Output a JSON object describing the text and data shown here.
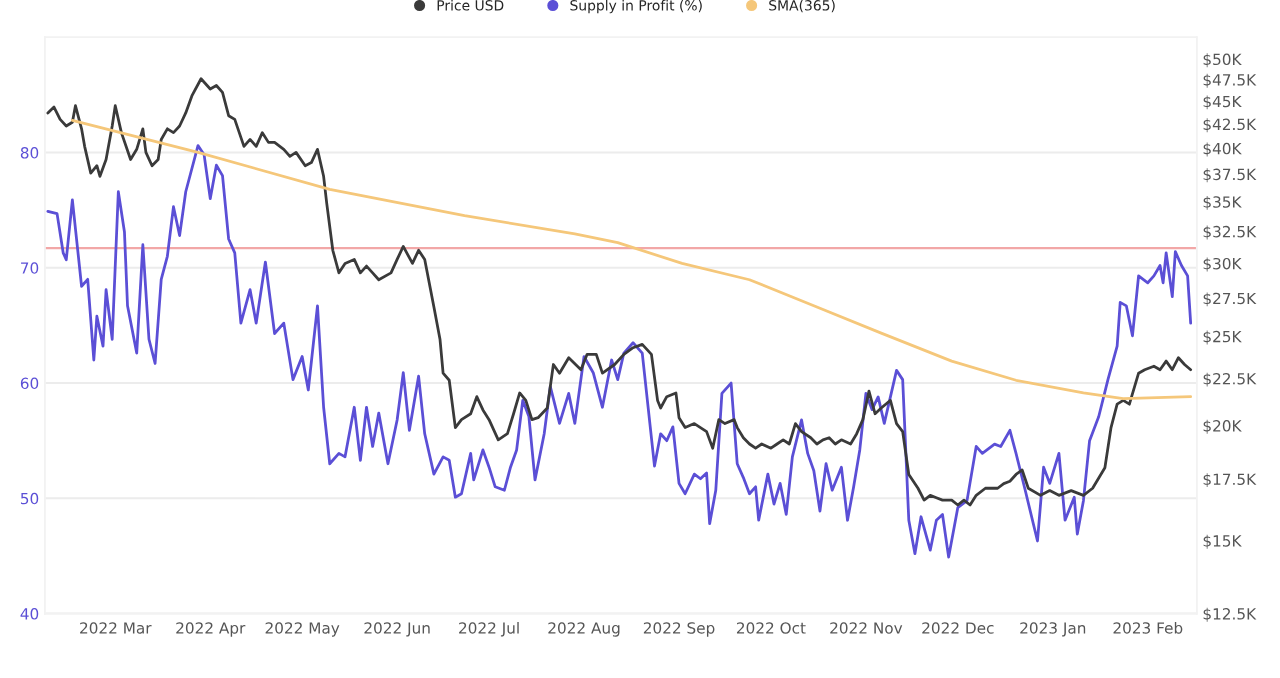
{
  "chart_data": {
    "type": "line",
    "legend": "top",
    "grid": "y",
    "log": "y2",
    "xlim": [
      "2022-02-06",
      "2023-02-17"
    ],
    "xticks": [
      {
        "value": "2022-03-01",
        "label": "2022 Mar"
      },
      {
        "value": "2022-04-01",
        "label": "2022 Apr"
      },
      {
        "value": "2022-05-01",
        "label": "2022 May"
      },
      {
        "value": "2022-06-01",
        "label": "2022 Jun"
      },
      {
        "value": "2022-07-01",
        "label": "2022 Jul"
      },
      {
        "value": "2022-08-01",
        "label": "2022 Aug"
      },
      {
        "value": "2022-09-01",
        "label": "2022 Sep"
      },
      {
        "value": "2022-10-01",
        "label": "2022 Oct"
      },
      {
        "value": "2022-11-01",
        "label": "2022 Nov"
      },
      {
        "value": "2022-12-01",
        "label": "2022 Dec"
      },
      {
        "value": "2023-01-01",
        "label": "2023 Jan"
      },
      {
        "value": "2023-02-01",
        "label": "2023 Feb"
      }
    ],
    "ylim": [
      40,
      90
    ],
    "yticks": [
      40,
      50,
      60,
      70,
      80
    ],
    "y2lim": [
      12500,
      52800
    ],
    "y2ticks": [
      {
        "value": 12500,
        "label": "$12.5K"
      },
      {
        "value": 15000,
        "label": "$15K"
      },
      {
        "value": 17500,
        "label": "$17.5K"
      },
      {
        "value": 20000,
        "label": "$20K"
      },
      {
        "value": 22500,
        "label": "$22.5K"
      },
      {
        "value": 25000,
        "label": "$25K"
      },
      {
        "value": 27500,
        "label": "$27.5K"
      },
      {
        "value": 30000,
        "label": "$30K"
      },
      {
        "value": 32500,
        "label": "$32.5K"
      },
      {
        "value": 35000,
        "label": "$35K"
      },
      {
        "value": 37500,
        "label": "$37.5K"
      },
      {
        "value": 40000,
        "label": "$40K"
      },
      {
        "value": 42500,
        "label": "$42.5K"
      },
      {
        "value": 45000,
        "label": "$45K"
      },
      {
        "value": 47500,
        "label": "$47.5K"
      },
      {
        "value": 50000,
        "label": "$50K"
      }
    ],
    "ref_lines": [
      {
        "axis": "y",
        "value": 71.7,
        "color": "#f2a7a7"
      }
    ],
    "series": [
      {
        "name": "Price USD",
        "axis": "y2",
        "color": "#3a3a3a",
        "x": [
          "2022-02-07",
          "2022-02-09",
          "2022-02-11",
          "2022-02-13",
          "2022-02-15",
          "2022-02-16",
          "2022-02-18",
          "2022-02-19",
          "2022-02-21",
          "2022-02-23",
          "2022-02-24",
          "2022-02-26",
          "2022-02-28",
          "2022-03-01",
          "2022-03-03",
          "2022-03-06",
          "2022-03-08",
          "2022-03-10",
          "2022-03-11",
          "2022-03-13",
          "2022-03-15",
          "2022-03-16",
          "2022-03-18",
          "2022-03-20",
          "2022-03-22",
          "2022-03-24",
          "2022-03-26",
          "2022-03-29",
          "2022-04-01",
          "2022-04-03",
          "2022-04-05",
          "2022-04-07",
          "2022-04-09",
          "2022-04-12",
          "2022-04-14",
          "2022-04-16",
          "2022-04-18",
          "2022-04-20",
          "2022-04-22",
          "2022-04-25",
          "2022-04-27",
          "2022-04-29",
          "2022-05-02",
          "2022-05-04",
          "2022-05-06",
          "2022-05-08",
          "2022-05-09",
          "2022-05-11",
          "2022-05-13",
          "2022-05-15",
          "2022-05-18",
          "2022-05-20",
          "2022-05-22",
          "2022-05-24",
          "2022-05-26",
          "2022-05-30",
          "2022-06-01",
          "2022-06-03",
          "2022-06-06",
          "2022-06-08",
          "2022-06-10",
          "2022-06-13",
          "2022-06-15",
          "2022-06-16",
          "2022-06-18",
          "2022-06-20",
          "2022-06-22",
          "2022-06-25",
          "2022-06-27",
          "2022-06-29",
          "2022-07-01",
          "2022-07-04",
          "2022-07-07",
          "2022-07-09",
          "2022-07-11",
          "2022-07-13",
          "2022-07-15",
          "2022-07-17",
          "2022-07-20",
          "2022-07-22",
          "2022-07-24",
          "2022-07-27",
          "2022-07-31",
          "2022-08-02",
          "2022-08-05",
          "2022-08-07",
          "2022-08-11",
          "2022-08-14",
          "2022-08-17",
          "2022-08-20",
          "2022-08-23",
          "2022-08-25",
          "2022-08-26",
          "2022-08-28",
          "2022-08-31",
          "2022-09-01",
          "2022-09-03",
          "2022-09-06",
          "2022-09-08",
          "2022-09-10",
          "2022-09-12",
          "2022-09-14",
          "2022-09-16",
          "2022-09-19",
          "2022-09-20",
          "2022-09-22",
          "2022-09-24",
          "2022-09-26",
          "2022-09-28",
          "2022-10-01",
          "2022-10-03",
          "2022-10-05",
          "2022-10-07",
          "2022-10-09",
          "2022-10-11",
          "2022-10-14",
          "2022-10-16",
          "2022-10-18",
          "2022-10-20",
          "2022-10-22",
          "2022-10-24",
          "2022-10-27",
          "2022-10-29",
          "2022-10-31",
          "2022-11-02",
          "2022-11-04",
          "2022-11-06",
          "2022-11-09",
          "2022-11-11",
          "2022-11-13",
          "2022-11-15",
          "2022-11-18",
          "2022-11-20",
          "2022-11-22",
          "2022-11-24",
          "2022-11-26",
          "2022-11-29",
          "2022-12-01",
          "2022-12-03",
          "2022-12-05",
          "2022-12-07",
          "2022-12-10",
          "2022-12-14",
          "2022-12-16",
          "2022-12-18",
          "2022-12-20",
          "2022-12-22",
          "2022-12-24",
          "2022-12-28",
          "2022-12-31",
          "2023-01-03",
          "2023-01-07",
          "2023-01-11",
          "2023-01-14",
          "2023-01-18",
          "2023-01-20",
          "2023-01-22",
          "2023-01-24",
          "2023-01-26",
          "2023-01-29",
          "2023-01-31",
          "2023-02-03",
          "2023-02-05",
          "2023-02-07",
          "2023-02-09",
          "2023-02-11",
          "2023-02-13",
          "2023-02-15"
        ],
        "values": [
          43700,
          44350,
          43000,
          42300,
          42700,
          44500,
          42000,
          40200,
          37600,
          38300,
          37300,
          38900,
          42300,
          44500,
          41600,
          38900,
          39900,
          42000,
          39600,
          38300,
          38900,
          40900,
          42000,
          41600,
          42300,
          43700,
          45600,
          47600,
          46400,
          46800,
          46000,
          43400,
          43000,
          40200,
          40900,
          40200,
          41600,
          40600,
          40600,
          39900,
          39200,
          39600,
          38300,
          38600,
          39900,
          37300,
          34900,
          31000,
          29300,
          30000,
          30300,
          29300,
          29800,
          29300,
          28800,
          29300,
          30300,
          31300,
          30000,
          31000,
          30300,
          26900,
          24800,
          22800,
          22400,
          19900,
          20300,
          20600,
          21500,
          20800,
          20300,
          19300,
          19600,
          20600,
          21700,
          21300,
          20300,
          20400,
          20900,
          23300,
          22800,
          23700,
          23000,
          23900,
          23900,
          22800,
          23300,
          23900,
          24300,
          24500,
          23900,
          21300,
          20900,
          21500,
          21700,
          20400,
          19900,
          20100,
          19900,
          19700,
          18900,
          20300,
          20100,
          20300,
          19900,
          19400,
          19100,
          18900,
          19100,
          18900,
          19100,
          19300,
          19100,
          20100,
          19700,
          19400,
          19100,
          19300,
          19400,
          19100,
          19300,
          19100,
          19600,
          20300,
          21800,
          20600,
          20900,
          21300,
          20100,
          19700,
          17700,
          17100,
          16600,
          16800,
          16700,
          16600,
          16600,
          16400,
          16600,
          16400,
          16800,
          17100,
          17100,
          17300,
          17400,
          17700,
          17900,
          17100,
          16800,
          17000,
          16800,
          17000,
          16800,
          17100,
          18000,
          19900,
          21100,
          21300,
          21100,
          22800,
          23000,
          23200,
          23000,
          23500,
          23000,
          23700,
          23300,
          23000
        ]
      },
      {
        "name": "Supply in Profit (%)",
        "axis": "y",
        "color": "#5b4fd6",
        "x": [
          "2022-02-07",
          "2022-02-10",
          "2022-02-12",
          "2022-02-13",
          "2022-02-15",
          "2022-02-18",
          "2022-02-20",
          "2022-02-22",
          "2022-02-23",
          "2022-02-25",
          "2022-02-26",
          "2022-02-28",
          "2022-03-02",
          "2022-03-04",
          "2022-03-05",
          "2022-03-08",
          "2022-03-10",
          "2022-03-12",
          "2022-03-14",
          "2022-03-16",
          "2022-03-18",
          "2022-03-20",
          "2022-03-22",
          "2022-03-24",
          "2022-03-28",
          "2022-03-30",
          "2022-04-01",
          "2022-04-03",
          "2022-04-05",
          "2022-04-07",
          "2022-04-09",
          "2022-04-11",
          "2022-04-14",
          "2022-04-16",
          "2022-04-19",
          "2022-04-22",
          "2022-04-25",
          "2022-04-28",
          "2022-05-01",
          "2022-05-03",
          "2022-05-06",
          "2022-05-08",
          "2022-05-10",
          "2022-05-13",
          "2022-05-15",
          "2022-05-18",
          "2022-05-20",
          "2022-05-22",
          "2022-05-24",
          "2022-05-26",
          "2022-05-29",
          "2022-06-01",
          "2022-06-03",
          "2022-06-05",
          "2022-06-08",
          "2022-06-10",
          "2022-06-13",
          "2022-06-16",
          "2022-06-18",
          "2022-06-20",
          "2022-06-22",
          "2022-06-25",
          "2022-06-26",
          "2022-06-29",
          "2022-07-01",
          "2022-07-03",
          "2022-07-06",
          "2022-07-08",
          "2022-07-10",
          "2022-07-12",
          "2022-07-14",
          "2022-07-16",
          "2022-07-19",
          "2022-07-21",
          "2022-07-24",
          "2022-07-27",
          "2022-07-29",
          "2022-08-01",
          "2022-08-04",
          "2022-08-07",
          "2022-08-10",
          "2022-08-12",
          "2022-08-14",
          "2022-08-17",
          "2022-08-20",
          "2022-08-24",
          "2022-08-26",
          "2022-08-28",
          "2022-08-30",
          "2022-09-01",
          "2022-09-03",
          "2022-09-06",
          "2022-09-08",
          "2022-09-10",
          "2022-09-11",
          "2022-09-13",
          "2022-09-15",
          "2022-09-18",
          "2022-09-20",
          "2022-09-22",
          "2022-09-24",
          "2022-09-26",
          "2022-09-27",
          "2022-09-30",
          "2022-10-02",
          "2022-10-04",
          "2022-10-06",
          "2022-10-08",
          "2022-10-11",
          "2022-10-13",
          "2022-10-15",
          "2022-10-17",
          "2022-10-19",
          "2022-10-21",
          "2022-10-24",
          "2022-10-26",
          "2022-10-28",
          "2022-10-30",
          "2022-11-01",
          "2022-11-03",
          "2022-11-05",
          "2022-11-07",
          "2022-11-11",
          "2022-11-13",
          "2022-11-15",
          "2022-11-17",
          "2022-11-19",
          "2022-11-22",
          "2022-11-24",
          "2022-11-26",
          "2022-11-28",
          "2022-12-01",
          "2022-12-04",
          "2022-12-07",
          "2022-12-09",
          "2022-12-13",
          "2022-12-15",
          "2022-12-18",
          "2022-12-20",
          "2022-12-23",
          "2022-12-27",
          "2022-12-29",
          "2022-12-31",
          "2023-01-03",
          "2023-01-05",
          "2023-01-08",
          "2023-01-09",
          "2023-01-11",
          "2023-01-13",
          "2023-01-16",
          "2023-01-19",
          "2023-01-22",
          "2023-01-23",
          "2023-01-25",
          "2023-01-27",
          "2023-01-29",
          "2023-02-01",
          "2023-02-03",
          "2023-02-05",
          "2023-02-06",
          "2023-02-07",
          "2023-02-09",
          "2023-02-10",
          "2023-02-12",
          "2023-02-14",
          "2023-02-15"
        ],
        "values": [
          74.9,
          74.7,
          71.3,
          70.7,
          75.9,
          68.4,
          69.0,
          62.0,
          65.8,
          63.2,
          68.1,
          63.8,
          76.6,
          73.1,
          66.7,
          62.6,
          72.0,
          63.8,
          61.7,
          69.0,
          71.0,
          75.3,
          72.8,
          76.6,
          80.6,
          79.8,
          76.0,
          78.9,
          78.0,
          72.5,
          71.3,
          65.2,
          68.1,
          65.2,
          70.5,
          64.3,
          65.2,
          60.3,
          62.3,
          59.4,
          66.7,
          57.9,
          53.0,
          53.9,
          53.6,
          57.9,
          53.3,
          57.9,
          54.5,
          57.4,
          53.0,
          56.8,
          60.9,
          55.9,
          60.6,
          55.6,
          52.1,
          53.6,
          53.3,
          50.1,
          50.4,
          53.9,
          51.6,
          54.2,
          52.7,
          51.0,
          50.7,
          52.7,
          54.2,
          58.5,
          57.1,
          51.6,
          55.6,
          59.7,
          56.5,
          59.1,
          56.5,
          62.3,
          60.9,
          57.9,
          62.0,
          60.3,
          62.6,
          63.5,
          62.6,
          52.8,
          55.6,
          55.0,
          56.2,
          51.3,
          50.4,
          52.1,
          51.7,
          52.2,
          47.8,
          50.7,
          59.1,
          60.0,
          53.0,
          51.8,
          50.4,
          51.0,
          48.1,
          52.1,
          49.5,
          51.3,
          48.6,
          53.6,
          56.8,
          53.9,
          52.4,
          48.9,
          53.0,
          50.7,
          52.7,
          48.1,
          51.0,
          54.2,
          59.1,
          57.7,
          58.8,
          56.5,
          61.1,
          60.3,
          48.1,
          45.2,
          48.4,
          45.5,
          48.1,
          48.6,
          44.9,
          49.2,
          49.8,
          54.5,
          53.9,
          54.7,
          54.5,
          55.9,
          53.9,
          50.7,
          46.3,
          52.7,
          51.3,
          53.9,
          48.1,
          50.1,
          46.9,
          49.8,
          55.0,
          57.1,
          60.3,
          63.2,
          67.0,
          66.7,
          64.1,
          69.3,
          68.7,
          69.3,
          70.2,
          68.7,
          71.3,
          67.5,
          71.4,
          70.2,
          69.3,
          65.2
        ]
      },
      {
        "name": "SMA(365)",
        "axis": "y2",
        "color": "#f5c77a",
        "x": [
          "2022-02-15",
          "2022-03-28",
          "2022-05-10",
          "2022-06-23",
          "2022-07-29",
          "2022-08-12",
          "2022-09-02",
          "2022-09-24",
          "2022-10-16",
          "2022-11-06",
          "2022-11-29",
          "2022-12-20",
          "2023-01-11",
          "2023-01-24",
          "2023-02-15"
        ],
        "values": [
          42900,
          39600,
          36100,
          33800,
          32300,
          31600,
          30000,
          28800,
          26900,
          25200,
          23500,
          22400,
          21700,
          21400,
          21500
        ]
      }
    ]
  }
}
